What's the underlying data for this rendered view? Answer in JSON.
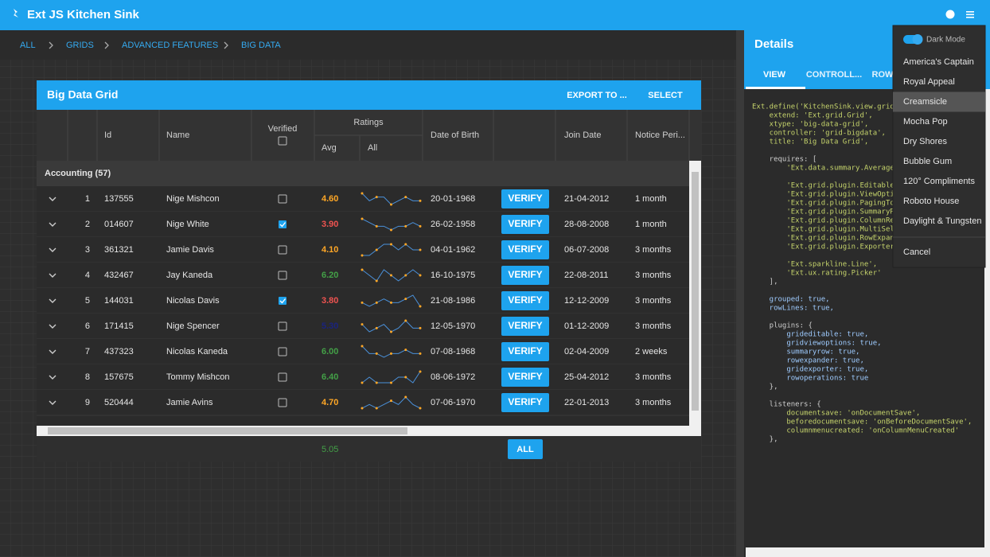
{
  "header": {
    "title": "Ext JS Kitchen Sink"
  },
  "breadcrumb": [
    "ALL",
    "GRIDS",
    "ADVANCED FEATURES",
    "BIG DATA"
  ],
  "grid": {
    "title": "Big Data Grid",
    "buttons": [
      "EXPORT TO ...",
      "SELECT"
    ],
    "columns": {
      "id": "Id",
      "name": "Name",
      "verified": "Verified",
      "ratings": "Ratings",
      "avg": "Avg",
      "all": "All",
      "dob": "Date of Birth",
      "join": "Join Date",
      "notice": "Notice Peri..."
    },
    "group": "Accounting (57)",
    "rows": [
      {
        "row": 1,
        "id": "137555",
        "name": "Nige Mishcon",
        "verified": false,
        "avg": "4.60",
        "avg_color": "#ffa726",
        "sparkline": [
          6,
          4,
          5,
          5,
          3,
          4,
          5,
          4,
          4
        ],
        "dob": "20-01-1968",
        "action": "VERIFY",
        "join": "21-04-2012",
        "notice": "1 month"
      },
      {
        "row": 2,
        "id": "014607",
        "name": "Nige White",
        "verified": true,
        "avg": "3.90",
        "avg_color": "#ef5350",
        "sparkline": [
          6,
          5,
          4,
          4,
          3,
          4,
          4,
          5,
          4
        ],
        "dob": "26-02-1958",
        "action": "VERIFY",
        "join": "28-08-2008",
        "notice": "1 month"
      },
      {
        "row": 3,
        "id": "361321",
        "name": "Jamie Davis",
        "verified": false,
        "avg": "4.10",
        "avg_color": "#ffa726",
        "sparkline": [
          3,
          3,
          4,
          5,
          5,
          4,
          5,
          4,
          4
        ],
        "dob": "04-01-1962",
        "action": "VERIFY",
        "join": "06-07-2008",
        "notice": "3 months"
      },
      {
        "row": 4,
        "id": "432467",
        "name": "Jay Kaneda",
        "verified": false,
        "avg": "6.20",
        "avg_color": "#43a047",
        "sparkline": [
          5,
          4,
          3,
          5,
          4,
          3,
          4,
          5,
          4
        ],
        "dob": "16-10-1975",
        "action": "VERIFY",
        "join": "22-08-2011",
        "notice": "3 months"
      },
      {
        "row": 5,
        "id": "144031",
        "name": "Nicolas Davis",
        "verified": true,
        "avg": "3.80",
        "avg_color": "#ef5350",
        "sparkline": [
          4,
          3,
          4,
          5,
          4,
          4,
          5,
          6,
          3
        ],
        "dob": "21-08-1986",
        "action": "VERIFY",
        "join": "12-12-2009",
        "notice": "3 months"
      },
      {
        "row": 6,
        "id": "171415",
        "name": "Nige Spencer",
        "verified": false,
        "avg": "5.30",
        "avg_color": "#1a237e",
        "sparkline": [
          5,
          3,
          4,
          5,
          3,
          4,
          6,
          4,
          4
        ],
        "dob": "12-05-1970",
        "action": "VERIFY",
        "join": "01-12-2009",
        "notice": "3 months"
      },
      {
        "row": 7,
        "id": "437323",
        "name": "Nicolas Kaneda",
        "verified": false,
        "avg": "6.00",
        "avg_color": "#43a047",
        "sparkline": [
          6,
          4,
          4,
          3,
          4,
          4,
          5,
          4,
          4
        ],
        "dob": "07-08-1968",
        "action": "VERIFY",
        "join": "02-04-2009",
        "notice": "2 weeks"
      },
      {
        "row": 8,
        "id": "157675",
        "name": "Tommy Mishcon",
        "verified": false,
        "avg": "6.40",
        "avg_color": "#43a047",
        "sparkline": [
          4,
          5,
          4,
          4,
          4,
          5,
          5,
          4,
          6
        ],
        "dob": "08-06-1972",
        "action": "VERIFY",
        "join": "25-04-2012",
        "notice": "3 months"
      },
      {
        "row": 9,
        "id": "520444",
        "name": "Jamie Avins",
        "verified": false,
        "avg": "4.70",
        "avg_color": "#ffa726",
        "sparkline": [
          3,
          4,
          3,
          4,
          5,
          4,
          6,
          4,
          3
        ],
        "dob": "07-06-1970",
        "action": "VERIFY",
        "join": "22-01-2013",
        "notice": "3 months"
      }
    ],
    "summary": {
      "avg": "5.05",
      "action": "ALL"
    }
  },
  "details": {
    "title": "Details",
    "tabs": [
      "VIEW",
      "CONTROLL...",
      "ROW"
    ],
    "code": [
      [
        "Ext.define('KitchenSink.view.grid...",
        "    extend: 'Ext.grid.Grid',",
        "    xtype: 'big-data-grid',",
        "    controller: 'grid-bigdata',",
        "    title: 'Big Data Grid',"
      ],
      [
        "    requires: [",
        "        'Ext.data.summary.Average',"
      ],
      [
        "        'Ext.grid.plugin.Editable',",
        "        'Ext.grid.plugin.ViewOption",
        "        'Ext.grid.plugin.PagingToo",
        "        'Ext.grid.plugin.SummaryRo",
        "        'Ext.grid.plugin.ColumnRes",
        "        'Ext.grid.plugin.MultiSele",
        "        'Ext.grid.plugin.RowExpande",
        "        'Ext.grid.plugin.Exporter'"
      ],
      [
        "        'Ext.sparkline.Line',",
        "        'Ext.ux.rating.Picker'",
        "    ],"
      ],
      [
        "    grouped: true,",
        "    rowLines: true,"
      ],
      [
        "    plugins: {",
        "        grideditable: true,",
        "        gridviewoptions: true,",
        "        summaryrow: true,",
        "        rowexpander: true,",
        "        gridexporter: true,",
        "        rowoperations: true",
        "    },"
      ],
      [
        "    listeners: {",
        "        documentsave: 'onDocumentSave',",
        "        beforedocumentsave: 'onBeforeDocumentSave',",
        "        columnmenucreated: 'onColumnMenuCreated'",
        "    },"
      ]
    ]
  },
  "menu": {
    "toggle": {
      "label": "Dark Mode",
      "on": true
    },
    "items": [
      "America's Captain",
      "Royal Appeal",
      "Creamsicle",
      "Mocha Pop",
      "Dry Shores",
      "Bubble Gum",
      "120° Compliments",
      "Roboto House",
      "Daylight & Tungsten"
    ],
    "selected": 2,
    "cancel": "Cancel"
  }
}
